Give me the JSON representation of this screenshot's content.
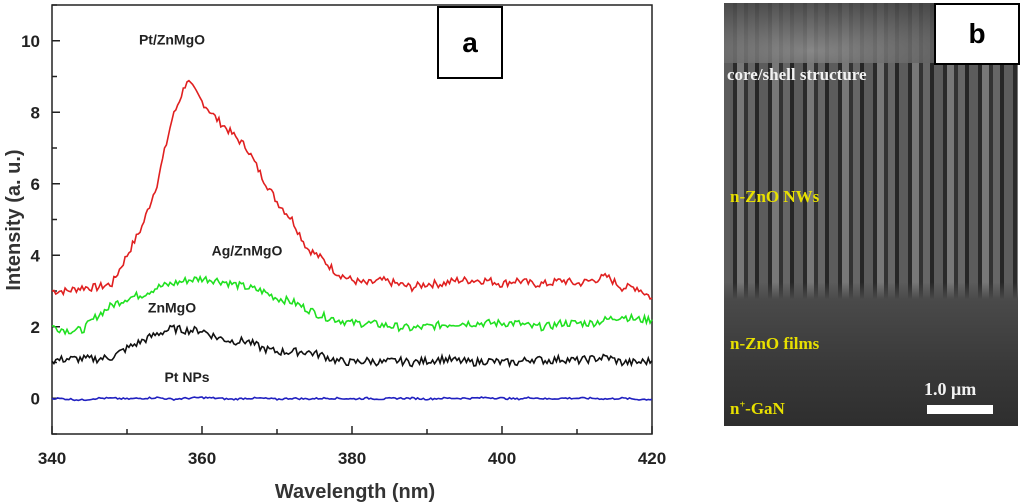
{
  "panel_labels": {
    "a": "a",
    "b": "b"
  },
  "chart_data": {
    "type": "line",
    "title": "",
    "xlabel": "Wavelength (nm)",
    "ylabel": "Intensity (a. u.)",
    "xlim": [
      340,
      420
    ],
    "ylim": [
      -1,
      11
    ],
    "xticks": [
      340,
      360,
      380,
      400,
      420
    ],
    "yticks": [
      0,
      2,
      4,
      6,
      8,
      10
    ],
    "grid": false,
    "x": [
      340,
      342,
      344,
      346,
      348,
      350,
      352,
      354,
      356,
      358,
      360,
      362,
      364,
      366,
      368,
      370,
      372,
      374,
      376,
      378,
      380,
      382,
      384,
      386,
      388,
      390,
      392,
      394,
      396,
      398,
      400,
      402,
      404,
      406,
      408,
      410,
      412,
      414,
      416,
      418,
      420
    ],
    "series": [
      {
        "name": "Pt/ZnMgO",
        "color": "#e02020",
        "values": [
          3.0,
          3.0,
          3.1,
          3.1,
          3.2,
          4.0,
          4.8,
          6.0,
          7.8,
          8.9,
          8.3,
          7.8,
          7.4,
          7.0,
          6.2,
          5.5,
          5.0,
          4.2,
          3.9,
          3.5,
          3.3,
          3.2,
          3.3,
          3.2,
          3.1,
          3.2,
          3.2,
          3.3,
          3.3,
          3.3,
          3.2,
          3.3,
          3.2,
          3.2,
          3.3,
          3.2,
          3.3,
          3.4,
          3.1,
          3.1,
          2.8
        ]
      },
      {
        "name": "Ag/ZnMgO",
        "color": "#20e020",
        "values": [
          2.0,
          1.9,
          1.9,
          2.3,
          2.6,
          2.8,
          2.9,
          3.1,
          3.2,
          3.3,
          3.35,
          3.3,
          3.2,
          3.1,
          3.0,
          2.8,
          2.7,
          2.5,
          2.3,
          2.2,
          2.1,
          2.1,
          2.05,
          2.0,
          1.95,
          2.0,
          2.05,
          2.1,
          2.1,
          2.1,
          2.1,
          2.1,
          2.0,
          2.0,
          2.1,
          2.1,
          2.1,
          2.2,
          2.3,
          2.2,
          2.2
        ]
      },
      {
        "name": "ZnMgO",
        "color": "#111111",
        "values": [
          1.05,
          1.1,
          1.1,
          1.1,
          1.15,
          1.4,
          1.6,
          1.8,
          1.95,
          1.9,
          1.9,
          1.7,
          1.6,
          1.6,
          1.4,
          1.3,
          1.3,
          1.3,
          1.2,
          1.05,
          1.0,
          1.05,
          1.0,
          1.05,
          1.0,
          1.05,
          1.1,
          1.05,
          1.0,
          1.05,
          1.0,
          1.0,
          1.1,
          1.05,
          1.1,
          1.05,
          1.1,
          1.15,
          1.0,
          1.0,
          1.05
        ]
      },
      {
        "name": "Pt NPs",
        "color": "#2020c0",
        "values": [
          0.0,
          -0.02,
          -0.05,
          0.0,
          0.0,
          -0.02,
          0.0,
          0.02,
          -0.03,
          0.0,
          0.02,
          0.0,
          -0.03,
          0.0,
          0.0,
          -0.03,
          0.0,
          -0.02,
          0.0,
          0.0,
          -0.02,
          0.0,
          -0.02,
          0.0,
          0.0,
          -0.02,
          0.0,
          0.0,
          0.0,
          0.02,
          0.0,
          -0.02,
          0.02,
          -0.02,
          0.0,
          0.0,
          0.0,
          -0.02,
          0.0,
          -0.03,
          -0.03
        ]
      }
    ],
    "annotations": [
      {
        "text": "Pt/ZnMgO",
        "x": 356,
        "y": 9.9
      },
      {
        "text": "Ag/ZnMgO",
        "x": 366,
        "y": 4.0
      },
      {
        "text": "ZnMgO",
        "x": 356,
        "y": 2.4
      },
      {
        "text": "Pt NPs",
        "x": 358,
        "y": 0.45
      }
    ]
  },
  "sem_image": {
    "labels": {
      "core_shell": "core/shell structure",
      "nws": "n-ZnO NWs",
      "films": "n-ZnO films",
      "substrate_n": "n",
      "substrate_sup": "+",
      "substrate_rest": "-GaN"
    },
    "scale_bar": "1.0 μm"
  }
}
